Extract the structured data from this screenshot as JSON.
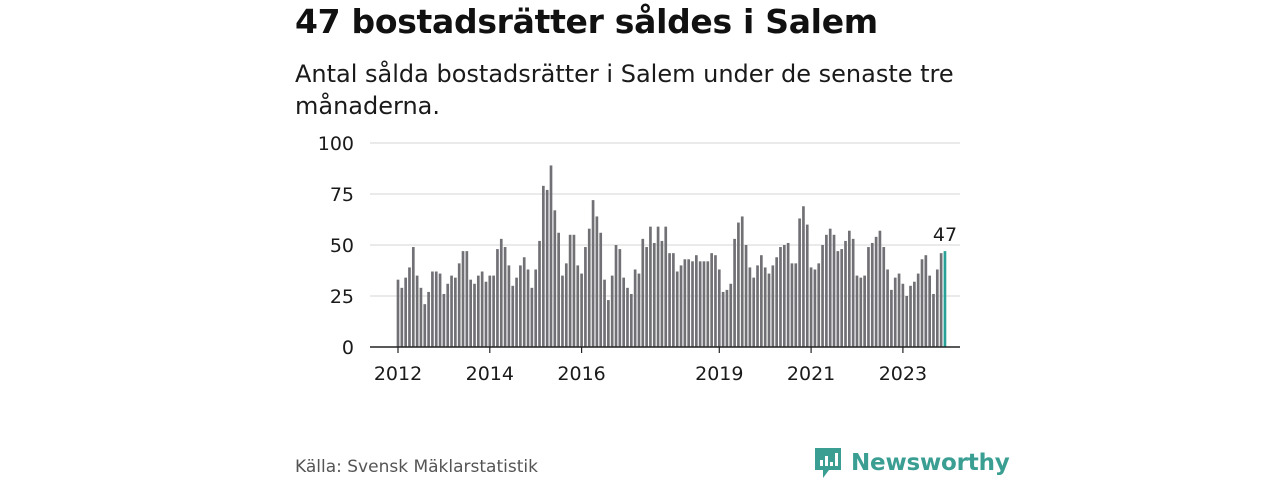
{
  "title": "47 bostadsrätter såldes i Salem",
  "subtitle": "Antal sålda bostadsrätter i Salem under de senaste tre månaderna.",
  "source": "Källa: Svensk Mäklarstatistik",
  "brand": {
    "name": "Newsworthy",
    "icon": "newsworthy-logo-icon",
    "color": "#3a9e93"
  },
  "colors": {
    "bar": "#717075",
    "highlight": "#28a098",
    "grid": "#d6d6d6",
    "axis": "#222222"
  },
  "chart_data": {
    "type": "bar",
    "title": "47 bostadsrätter såldes i Salem",
    "xlabel": "",
    "ylabel": "",
    "ylim": [
      0,
      100
    ],
    "yticks": [
      0,
      25,
      50,
      75,
      100
    ],
    "grid": true,
    "x_start": 2012.0,
    "x_step": 0.08333,
    "xticks": [
      {
        "label": "2012",
        "x": 2012.0
      },
      {
        "label": "2014",
        "x": 2014.0
      },
      {
        "label": "2016",
        "x": 2016.0
      },
      {
        "label": "2019",
        "x": 2019.0
      },
      {
        "label": "2021",
        "x": 2021.0
      },
      {
        "label": "2023",
        "x": 2023.0
      }
    ],
    "values": [
      33,
      29,
      34,
      39,
      49,
      35,
      29,
      21,
      27,
      37,
      37,
      36,
      26,
      31,
      35,
      34,
      41,
      47,
      47,
      33,
      31,
      35,
      37,
      32,
      35,
      35,
      48,
      53,
      49,
      40,
      30,
      34,
      40,
      44,
      38,
      29,
      38,
      52,
      79,
      77,
      89,
      67,
      56,
      35,
      41,
      55,
      55,
      40,
      36,
      49,
      58,
      72,
      64,
      56,
      33,
      23,
      35,
      50,
      48,
      34,
      29,
      26,
      38,
      36,
      53,
      49,
      59,
      51,
      59,
      52,
      59,
      46,
      46,
      37,
      40,
      43,
      43,
      42,
      45,
      42,
      42,
      42,
      46,
      45,
      38,
      27,
      28,
      31,
      53,
      61,
      64,
      50,
      39,
      34,
      40,
      45,
      39,
      36,
      40,
      44,
      49,
      50,
      51,
      41,
      41,
      63,
      69,
      60,
      39,
      38,
      41,
      50,
      55,
      58,
      55,
      47,
      48,
      52,
      57,
      53,
      35,
      34,
      35,
      49,
      51,
      54,
      57,
      49,
      38,
      28,
      34,
      36,
      31,
      25,
      30,
      32,
      36,
      43,
      45,
      35,
      26,
      38,
      46,
      47
    ],
    "highlight_last": true,
    "last_label": "47"
  }
}
